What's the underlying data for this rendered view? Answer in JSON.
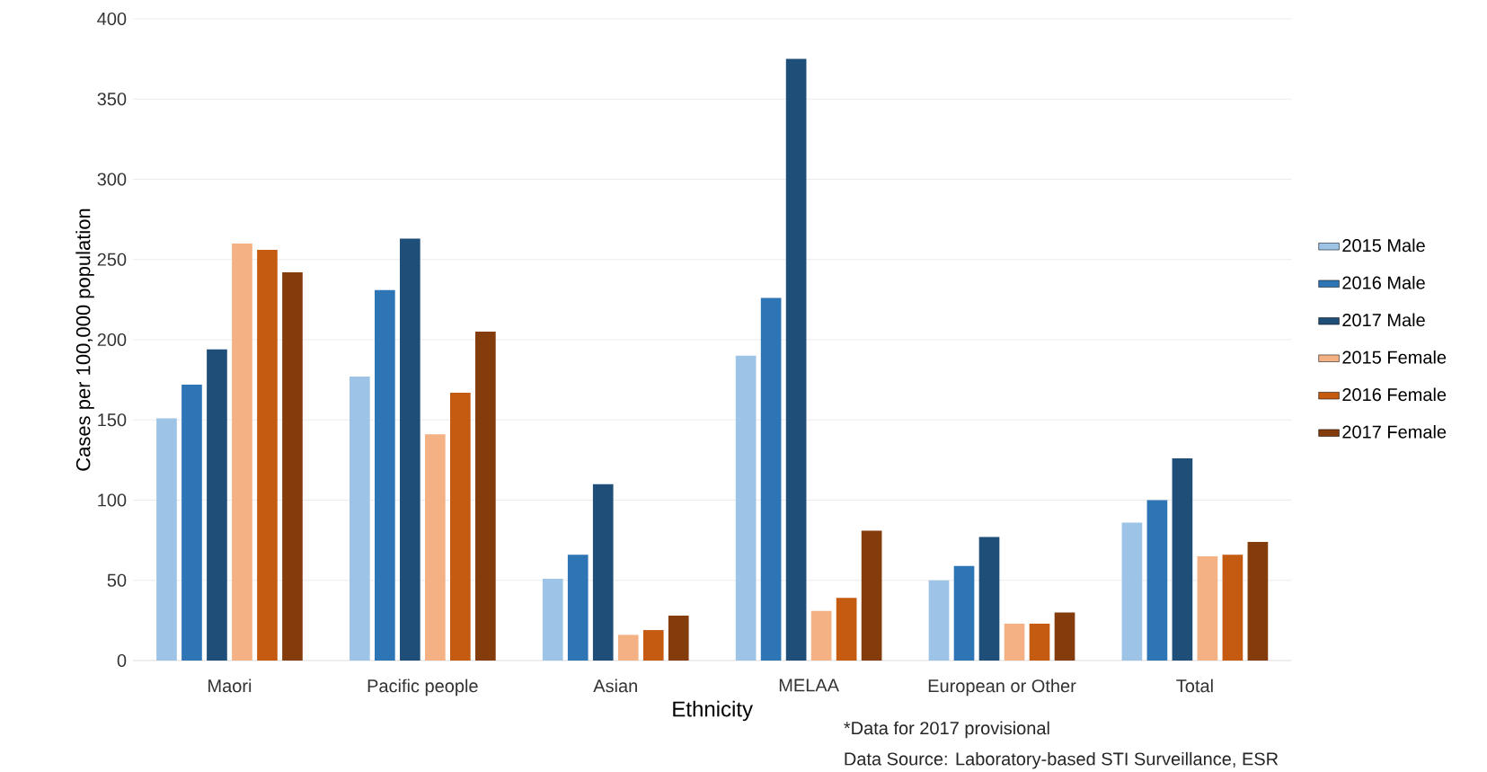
{
  "chart_data": {
    "type": "bar",
    "categories": [
      "Maori",
      "Pacific people",
      "Asian",
      "MELAA",
      "European or Other",
      "Total"
    ],
    "xlabel": "Ethnicity",
    "ylabel": "Cases per 100,000 population",
    "series": [
      {
        "name": "2015 Male",
        "color": "#9dc3e6",
        "values": [
          151,
          177,
          51,
          190,
          50,
          86
        ]
      },
      {
        "name": "2016 Male",
        "color": "#2e75b6",
        "values": [
          172,
          231,
          66,
          226,
          59,
          100
        ]
      },
      {
        "name": "2017 Male",
        "color": "#1f4e79",
        "values": [
          194,
          263,
          110,
          375,
          77,
          126
        ]
      },
      {
        "name": "2015 Female",
        "color": "#f4b183",
        "values": [
          260,
          141,
          16,
          31,
          23,
          65
        ]
      },
      {
        "name": "2016 Female",
        "color": "#c55a11",
        "values": [
          256,
          167,
          19,
          39,
          23,
          66
        ]
      },
      {
        "name": "2017 Female",
        "color": "#843c0c",
        "values": [
          242,
          205,
          28,
          81,
          30,
          74
        ]
      }
    ],
    "ylim": [
      0,
      400
    ],
    "yticks": [
      0,
      50,
      100,
      150,
      200,
      250,
      300,
      350,
      400
    ],
    "grid": "y",
    "legend": "right",
    "annotations": [
      "*Data for 2017 provisional",
      "Data Source: Laboratory-based STI Surveillance, ESR"
    ]
  }
}
